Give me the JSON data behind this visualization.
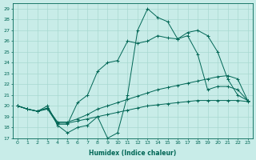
{
  "title": "",
  "xlabel": "Humidex (Indice chaleur)",
  "ylabel": "",
  "background_color": "#c8ece8",
  "grid_color": "#a8d8d0",
  "line_color": "#006655",
  "xlim": [
    -0.5,
    23.5
  ],
  "ylim": [
    17,
    29.5
  ],
  "xticks": [
    0,
    1,
    2,
    3,
    4,
    5,
    6,
    7,
    8,
    9,
    10,
    11,
    12,
    13,
    14,
    15,
    16,
    17,
    18,
    19,
    20,
    21,
    22,
    23
  ],
  "yticks": [
    17,
    18,
    19,
    20,
    21,
    22,
    23,
    24,
    25,
    26,
    27,
    28,
    29
  ],
  "series": [
    [
      20.0,
      19.7,
      19.5,
      20.0,
      18.2,
      17.5,
      18.0,
      18.2,
      19.0,
      17.0,
      17.5,
      21.0,
      27.0,
      29.0,
      28.2,
      27.8,
      26.2,
      26.8,
      27.0,
      26.5,
      25.0,
      22.5,
      21.0,
      20.5
    ],
    [
      20.0,
      19.7,
      19.5,
      19.7,
      18.3,
      18.3,
      20.3,
      21.0,
      23.2,
      24.0,
      24.2,
      26.0,
      25.8,
      26.0,
      26.5,
      26.3,
      26.2,
      26.5,
      24.8,
      21.5,
      21.8,
      21.8,
      21.5,
      20.5
    ],
    [
      20.0,
      19.7,
      19.5,
      19.8,
      18.5,
      18.5,
      18.8,
      19.2,
      19.7,
      20.0,
      20.3,
      20.6,
      20.9,
      21.2,
      21.5,
      21.7,
      21.9,
      22.1,
      22.3,
      22.5,
      22.7,
      22.8,
      22.5,
      20.5
    ],
    [
      20.0,
      19.7,
      19.5,
      19.8,
      18.4,
      18.4,
      18.6,
      18.8,
      19.0,
      19.2,
      19.4,
      19.6,
      19.8,
      20.0,
      20.1,
      20.2,
      20.3,
      20.4,
      20.5,
      20.5,
      20.5,
      20.5,
      20.5,
      20.4
    ]
  ]
}
